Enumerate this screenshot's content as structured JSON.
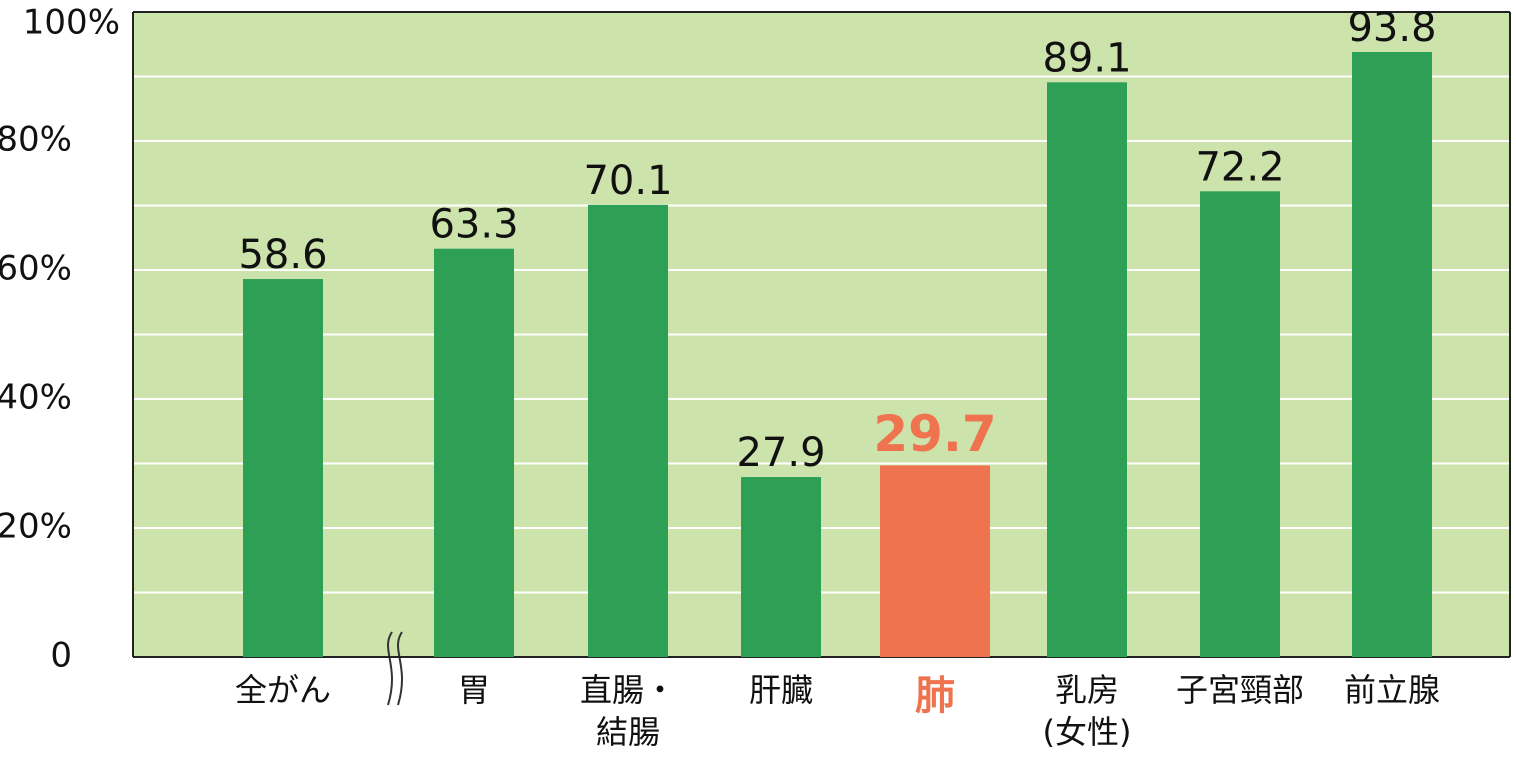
{
  "chart_data": {
    "type": "bar",
    "categories": [
      [
        "全がん"
      ],
      [
        "胃"
      ],
      [
        "直腸・",
        "結腸"
      ],
      [
        "肝臓"
      ],
      [
        "肺"
      ],
      [
        "乳房",
        "(女性)"
      ],
      [
        "子宮頸部"
      ],
      [
        "前立腺"
      ]
    ],
    "values": [
      58.6,
      63.3,
      70.1,
      27.9,
      29.7,
      89.1,
      72.2,
      93.8
    ],
    "color": "#2ea055",
    "colors": [
      "#2ea055",
      "#2ea055",
      "#2ea055",
      "#2ea055",
      "#f07350",
      "#2ea055",
      "#2ea055",
      "#2ea055"
    ],
    "ylim": [
      0,
      100
    ],
    "yticks": [
      0,
      {
        "value": 20,
        "label": "20%"
      },
      {
        "value": 40,
        "label": "40%"
      },
      {
        "value": 60,
        "label": "60%"
      },
      {
        "value": 80,
        "label": "80%"
      },
      {
        "value": 100,
        "label": "100%"
      }
    ],
    "minor_yticks": [
      10,
      30,
      50,
      70,
      90
    ],
    "grid": true,
    "background": "#cde3ac"
  }
}
